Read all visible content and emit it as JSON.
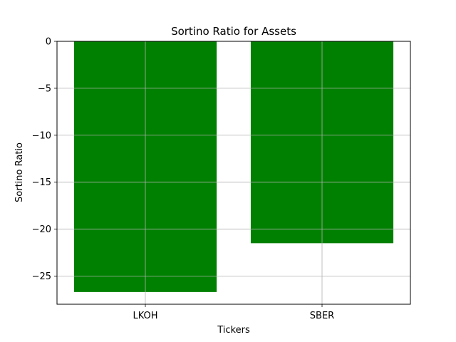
{
  "chart_data": {
    "type": "bar",
    "title": "Sortino Ratio for Assets",
    "xlabel": "Tickers",
    "ylabel": "Sortino Ratio",
    "categories": [
      "LKOH",
      "SBER"
    ],
    "values": [
      -26.7,
      -21.5
    ],
    "ylim": [
      -28.0,
      0
    ],
    "yticks": [
      0,
      -5,
      -10,
      -15,
      -20,
      -25
    ],
    "ytick_labels": [
      "0",
      "−5",
      "−10",
      "−15",
      "−20",
      "−25"
    ],
    "grid": true,
    "bar_color": "#008000",
    "grid_color": "#b0b0b0"
  }
}
